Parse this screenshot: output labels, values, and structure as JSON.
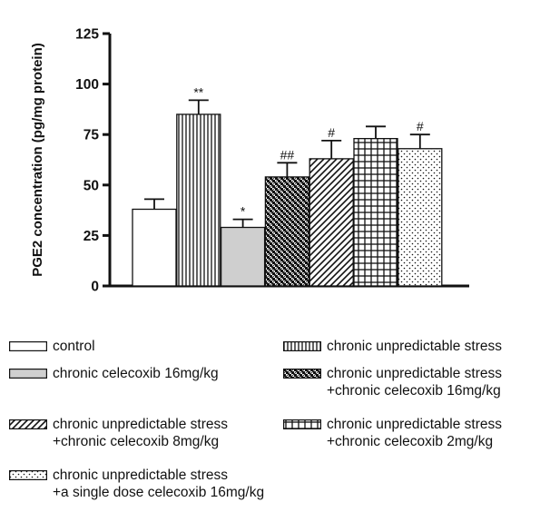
{
  "chart_data": {
    "type": "bar",
    "title": "",
    "xlabel": "",
    "ylabel": "PGE2 concentration (pg/mg protein)",
    "ylim": [
      0,
      125
    ],
    "yticks": [
      "0",
      "25",
      "50",
      "75",
      "100",
      "125"
    ],
    "grid": false,
    "legend_position": "bottom",
    "series": [
      {
        "id": "control",
        "value": 38,
        "error": 5,
        "annotation": "",
        "pattern": "none",
        "legend": [
          "control"
        ]
      },
      {
        "id": "cus",
        "value": 85,
        "error": 7,
        "annotation": "**",
        "pattern": "vertical",
        "legend": [
          "chronic unpredictable stress"
        ]
      },
      {
        "id": "cel16",
        "value": 29,
        "error": 4,
        "annotation": "*",
        "pattern": "gray",
        "legend": [
          "chronic celecoxib 16mg/kg"
        ]
      },
      {
        "id": "cus_cel16",
        "value": 54,
        "error": 7,
        "annotation": "##",
        "pattern": "checker",
        "legend": [
          "chronic unpredictable stress",
          "+chronic celecoxib 16mg/kg"
        ]
      },
      {
        "id": "cus_cel8",
        "value": 63,
        "error": 9,
        "annotation": "#",
        "pattern": "diagonal",
        "legend": [
          "chronic unpredictable stress",
          "+chronic celecoxib 8mg/kg"
        ]
      },
      {
        "id": "cus_cel2",
        "value": 73,
        "error": 6,
        "annotation": "",
        "pattern": "grid",
        "legend": [
          "chronic unpredictable stress",
          "+chronic celecoxib 2mg/kg"
        ]
      },
      {
        "id": "cus_single",
        "value": 68,
        "error": 7,
        "annotation": "#",
        "pattern": "dots",
        "legend": [
          "chronic unpredictable stress",
          "+a single dose celecoxib 16mg/kg"
        ]
      }
    ]
  },
  "legend_order": [
    "control",
    "cus",
    "cel16",
    "cus_cel16",
    "cus_cel8",
    "cus_cel2",
    "cus_single"
  ]
}
